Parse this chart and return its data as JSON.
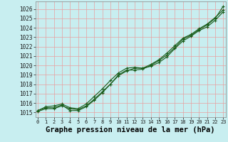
{
  "xlabel": "Graphe pression niveau de la mer (hPa)",
  "ylim": [
    1014.5,
    1026.8
  ],
  "xlim": [
    -0.3,
    23.3
  ],
  "yticks": [
    1015,
    1016,
    1017,
    1018,
    1019,
    1020,
    1021,
    1022,
    1023,
    1024,
    1025,
    1026
  ],
  "xticks": [
    0,
    1,
    2,
    3,
    4,
    5,
    6,
    7,
    8,
    9,
    10,
    11,
    12,
    13,
    14,
    15,
    16,
    17,
    18,
    19,
    20,
    21,
    22,
    23
  ],
  "bg_color": "#c8eef0",
  "grid_color": "#e8a0a0",
  "line_color": "#1a5c1a",
  "series": [
    [
      1015.2,
      1015.6,
      1015.7,
      1015.9,
      1015.5,
      1015.4,
      1015.9,
      1016.7,
      1017.5,
      1018.4,
      1019.2,
      1019.7,
      1019.8,
      1019.7,
      1020.1,
      1020.6,
      1021.3,
      1022.1,
      1022.9,
      1023.3,
      1023.9,
      1024.4,
      1025.1,
      1025.9
    ],
    [
      1015.2,
      1015.5,
      1015.5,
      1015.8,
      1015.2,
      1015.2,
      1015.6,
      1016.3,
      1017.1,
      1018.0,
      1018.9,
      1019.4,
      1019.7,
      1019.7,
      1019.9,
      1020.3,
      1020.9,
      1021.8,
      1022.6,
      1023.1,
      1023.7,
      1024.1,
      1024.8,
      1025.7
    ],
    [
      1015.1,
      1015.4,
      1015.4,
      1015.7,
      1015.4,
      1015.3,
      1015.7,
      1016.4,
      1017.2,
      1018.0,
      1019.0,
      1019.5,
      1019.5,
      1019.6,
      1020.0,
      1020.5,
      1021.1,
      1021.9,
      1022.8,
      1023.2,
      1023.8,
      1024.3,
      1025.0,
      1026.3
    ]
  ],
  "ytick_fontsize": 5.5,
  "xtick_fontsize": 5.0,
  "xlabel_fontsize": 7.5,
  "marker": "P",
  "markersize": 3.0,
  "linewidth": 0.8
}
